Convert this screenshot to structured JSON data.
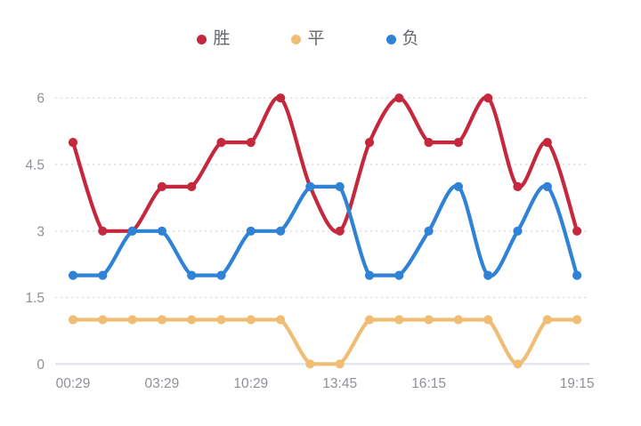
{
  "legend": {
    "items": [
      {
        "key": "win",
        "label": "胜",
        "color": "#c5283c"
      },
      {
        "key": "draw",
        "label": "平",
        "color": "#f0bd74"
      },
      {
        "key": "loss",
        "label": "负",
        "color": "#2f82d6"
      }
    ]
  },
  "chart_data": {
    "type": "line",
    "smooth": true,
    "title": "",
    "xlabel": "",
    "ylabel": "",
    "num_points": 18,
    "x_tick_labels": [
      "00:29",
      "03:29",
      "10:29",
      "13:45",
      "16:15",
      "19:15"
    ],
    "x_tick_point_indices": [
      0,
      3,
      6,
      9,
      12,
      17
    ],
    "y_ticks": [
      0,
      1.5,
      3,
      4.5,
      6
    ],
    "ylim": [
      0,
      6
    ],
    "grid": "dotted-horizontal",
    "legend_position": "top",
    "series": [
      {
        "name": "胜",
        "key": "win",
        "color": "#c5283c",
        "values": [
          5,
          3,
          3,
          4,
          4,
          5,
          5,
          6,
          4,
          3,
          5,
          6,
          5,
          5,
          6,
          4,
          5,
          3
        ]
      },
      {
        "name": "平",
        "key": "draw",
        "color": "#f0bd74",
        "values": [
          1,
          1,
          1,
          1,
          1,
          1,
          1,
          1,
          0,
          0,
          1,
          1,
          1,
          1,
          1,
          0,
          1,
          1
        ]
      },
      {
        "name": "负",
        "key": "loss",
        "color": "#2f82d6",
        "values": [
          2,
          2,
          3,
          3,
          2,
          2,
          3,
          3,
          4,
          4,
          2,
          2,
          3,
          4,
          2,
          3,
          4,
          2
        ]
      }
    ],
    "colors": {
      "axis_text": "#8e9197",
      "gridline": "#e1e1e1",
      "baseline": "#dfe3e8"
    }
  }
}
